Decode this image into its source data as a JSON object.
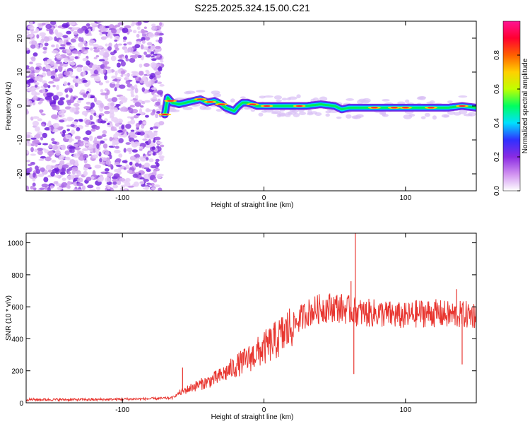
{
  "title": "S225.2025.324.15.00.C21",
  "chart_data": [
    {
      "type": "heatmap",
      "name": "spectrogram",
      "xlabel": "Height of straight line (km)",
      "ylabel": "Frequency (Hz)",
      "xlim": [
        -168,
        150
      ],
      "ylim": [
        -25,
        25
      ],
      "xticks": [
        -100,
        0,
        100
      ],
      "yticks": [
        -20,
        -10,
        0,
        10,
        20
      ],
      "noise_region": {
        "x": [
          -168,
          -72
        ],
        "y": [
          -25,
          25
        ]
      },
      "signal_track": {
        "x": [
          -70,
          -68,
          -65,
          -60,
          -55,
          -50,
          -45,
          -40,
          -35,
          -30,
          -27,
          -24,
          -21,
          -18,
          -15,
          -12,
          -8,
          -5,
          0,
          10,
          20,
          30,
          40,
          50,
          55,
          60,
          70,
          80,
          90,
          100,
          110,
          120,
          130,
          140,
          150
        ],
        "freq": [
          -2.5,
          2.5,
          1.0,
          0.5,
          1.0,
          1.5,
          2.0,
          1.0,
          1.5,
          0.5,
          -0.5,
          -1.0,
          -1.5,
          0.0,
          1.0,
          1.0,
          0.5,
          0.0,
          0.0,
          0.0,
          0.0,
          0.0,
          0.5,
          0.0,
          -1.0,
          -0.5,
          -0.5,
          -0.5,
          -0.5,
          -0.5,
          -0.5,
          -0.5,
          -0.5,
          0.0,
          -0.5
        ]
      },
      "colorbar": {
        "label": "Normalized spectral amplitude",
        "range": [
          0.0,
          1.0
        ],
        "ticks": [
          0.0,
          0.2,
          0.4,
          0.6,
          0.8
        ],
        "tick_labels": [
          "0.0",
          "0.2",
          "0.4",
          "0.6",
          "0.8"
        ],
        "colors": [
          "#ffffff",
          "#d090f0",
          "#8a2be2",
          "#3030ff",
          "#00e0ff",
          "#00ff60",
          "#c0ff00",
          "#ffd000",
          "#ff6000",
          "#ff0030",
          "#ff1493"
        ]
      }
    },
    {
      "type": "line",
      "name": "snr",
      "xlabel": "Height of straight line (km)",
      "ylabel": "SNR (10 * v/v)",
      "xlim": [
        -168,
        150
      ],
      "ylim": [
        0,
        1060
      ],
      "xticks": [
        -100,
        0,
        100
      ],
      "yticks": [
        0,
        200,
        400,
        600,
        800,
        1000
      ],
      "color": "#e8352f",
      "trend": {
        "x": [
          -168,
          -120,
          -80,
          -65,
          -60,
          -50,
          -40,
          -30,
          -20,
          -10,
          0,
          10,
          20,
          30,
          40,
          50,
          60,
          70,
          80,
          90,
          100,
          110,
          120,
          130,
          140,
          150
        ],
        "y": [
          20,
          20,
          25,
          30,
          60,
          100,
          130,
          170,
          230,
          280,
          340,
          400,
          480,
          560,
          590,
          600,
          580,
          560,
          560,
          550,
          540,
          560,
          560,
          550,
          550,
          550
        ]
      },
      "spikes": [
        {
          "x": -57.5,
          "y": 220
        },
        {
          "x": 61.5,
          "y": 760
        },
        {
          "x": 63.5,
          "y": 180
        },
        {
          "x": 64.5,
          "y": 1060
        },
        {
          "x": 136,
          "y": 710
        },
        {
          "x": 140,
          "y": 240
        }
      ]
    }
  ]
}
